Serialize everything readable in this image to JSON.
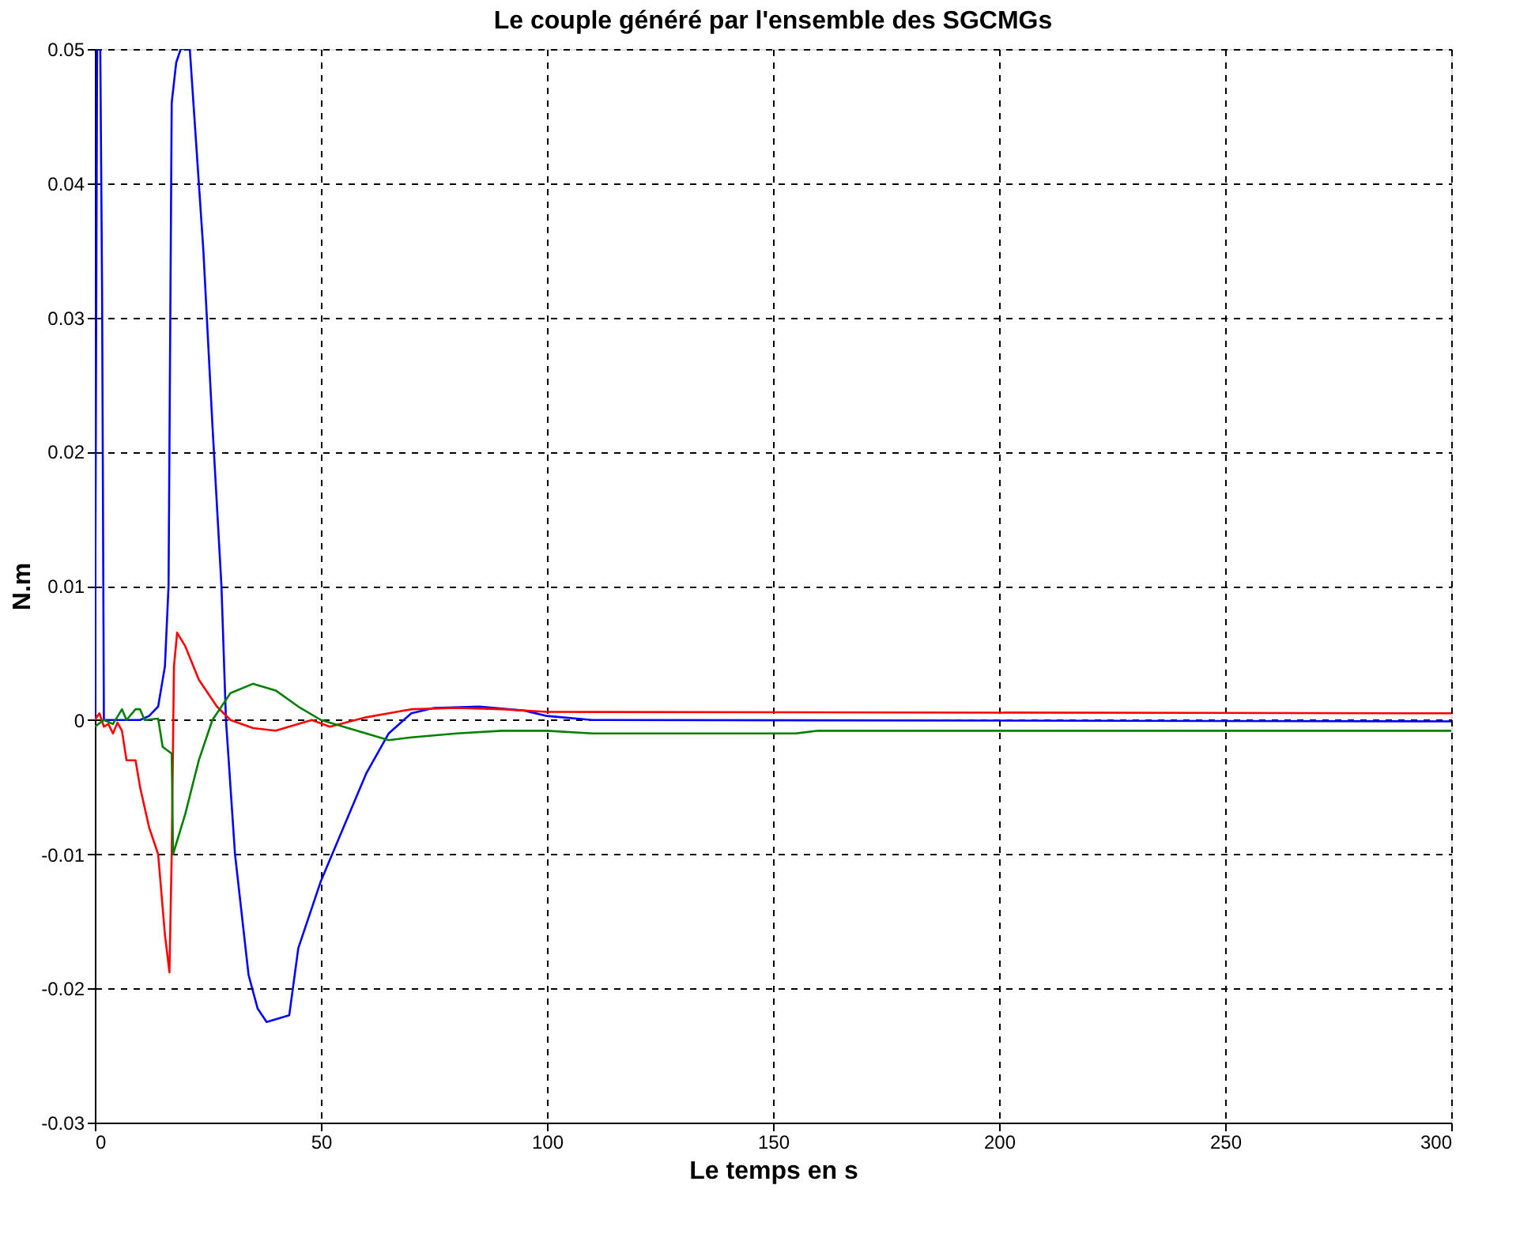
{
  "chart_data": {
    "type": "line",
    "title": "Le couple généré par l'ensemble des SGCMGs",
    "xlabel": "Le temps en s",
    "ylabel": "N.m",
    "xlim": [
      0,
      300
    ],
    "xticks": [
      0,
      50,
      100,
      150,
      200,
      250,
      300
    ],
    "ylim": [
      -0.03,
      0.05
    ],
    "yticks": [
      -0.03,
      -0.02,
      -0.01,
      0,
      0.01,
      0.02,
      0.03,
      0.04,
      0.05
    ],
    "grid": true,
    "line_style": "solid",
    "marker": "none",
    "legend": false,
    "series": [
      {
        "color": "#0000ff",
        "x": [
          0,
          0.5,
          1.2,
          1.6,
          2,
          5,
          10,
          12,
          14,
          15.5,
          16.3,
          17,
          18,
          19,
          20,
          21,
          22,
          24,
          26,
          28,
          29,
          31,
          34,
          36,
          38,
          43,
          45,
          50,
          55,
          60,
          65,
          70,
          75,
          85,
          95,
          100,
          110,
          300
        ],
        "values": [
          0,
          0.05,
          0.05,
          0.032,
          0,
          0,
          0,
          0.0003,
          0.001,
          0.004,
          0.01,
          0.046,
          0.049,
          0.05,
          0.05,
          0.05,
          0.045,
          0.035,
          0.022,
          0.01,
          0.0,
          -0.01,
          -0.019,
          -0.0215,
          -0.0225,
          -0.022,
          -0.017,
          -0.012,
          -0.008,
          -0.004,
          -0.001,
          0.0005,
          0.0009,
          0.001,
          0.0007,
          0.0003,
          0.0,
          -0.0001
        ]
      },
      {
        "color": "#ff0000",
        "x": [
          0,
          1,
          2,
          3,
          4,
          5,
          6,
          7,
          9,
          10,
          12,
          14,
          15.5,
          16.5,
          17,
          17.5,
          18.2,
          20,
          23,
          27,
          30,
          35,
          40,
          45,
          48,
          52,
          60,
          70,
          80,
          90,
          100,
          300
        ],
        "values": [
          0,
          0.0005,
          -0.0005,
          -0.0003,
          -0.001,
          -0.0002,
          -0.0008,
          -0.003,
          -0.003,
          -0.005,
          -0.008,
          -0.01,
          -0.016,
          -0.0188,
          -0.01,
          0.004,
          0.0065,
          0.0055,
          0.003,
          0.001,
          0.0,
          -0.0006,
          -0.0008,
          -0.0003,
          0.0,
          -0.0005,
          0.0002,
          0.0008,
          0.0009,
          0.0008,
          0.0006,
          0.0005
        ]
      },
      {
        "color": "#008000",
        "x": [
          0,
          2,
          4,
          6,
          7,
          9,
          10,
          11,
          14,
          15,
          17,
          17.3,
          20,
          23,
          26,
          30,
          35,
          40,
          45,
          50,
          55,
          60,
          65,
          70,
          80,
          90,
          100,
          110,
          155,
          160,
          300
        ],
        "values": [
          -0.0005,
          0,
          -0.0003,
          0.0008,
          0,
          0.0008,
          0.0008,
          0,
          0.0001,
          -0.002,
          -0.0025,
          -0.01,
          -0.007,
          -0.003,
          0,
          0.002,
          0.0027,
          0.0022,
          0.001,
          0.0,
          -0.0005,
          -0.001,
          -0.0015,
          -0.0013,
          -0.001,
          -0.0008,
          -0.0008,
          -0.001,
          -0.001,
          -0.0008,
          -0.0008
        ]
      }
    ]
  }
}
